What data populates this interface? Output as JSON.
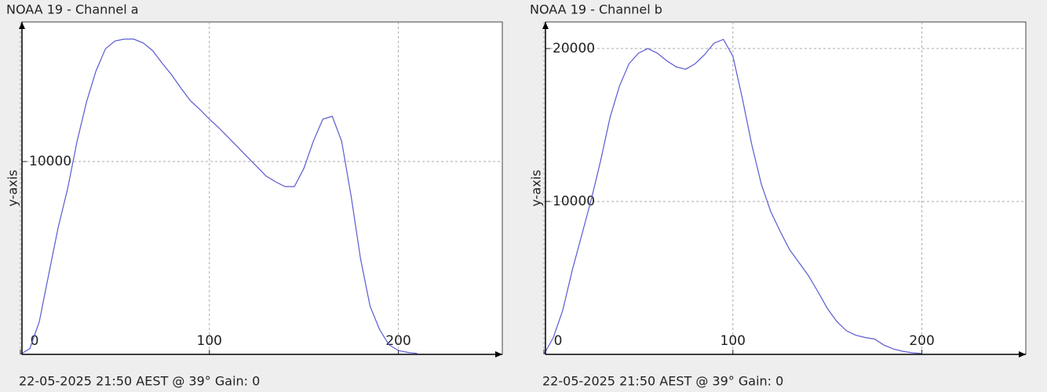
{
  "chart_data": [
    {
      "type": "line",
      "title": "NOAA 19 - Channel a",
      "y_label": "y-axis",
      "caption": "22-05-2025 21:50 AEST @ 39° Gain: 0",
      "x": [
        0,
        5,
        10,
        15,
        20,
        25,
        30,
        35,
        40,
        45,
        50,
        55,
        60,
        65,
        70,
        75,
        80,
        85,
        90,
        95,
        100,
        105,
        110,
        115,
        120,
        125,
        130,
        135,
        140,
        145,
        150,
        155,
        160,
        165,
        170,
        175,
        180,
        185,
        190,
        195,
        200,
        205,
        210
      ],
      "series": [
        {
          "color": "#5a5ad2",
          "values": [
            0,
            300,
            1700,
            4150,
            6600,
            8600,
            11050,
            13100,
            14700,
            15850,
            16250,
            16350,
            16350,
            16150,
            15750,
            15100,
            14500,
            13800,
            13150,
            12700,
            12200,
            11750,
            11250,
            10750,
            10250,
            9750,
            9250,
            8950,
            8700,
            8700,
            9650,
            11050,
            12200,
            12350,
            11050,
            8200,
            4950,
            2500,
            1300,
            500,
            200,
            100,
            50
          ]
        }
      ],
      "xlim": [
        0,
        255
      ],
      "xticks": [
        0,
        100,
        200
      ],
      "ylim": [
        0,
        17240
      ],
      "yticks": [
        10000
      ],
      "grid": true
    },
    {
      "type": "line",
      "title": "NOAA 19 - Channel b",
      "y_label": "y-axis",
      "caption": "22-05-2025 21:50 AEST @ 39° Gain: 0",
      "x": [
        0,
        5,
        10,
        15,
        20,
        25,
        30,
        35,
        40,
        45,
        50,
        55,
        60,
        65,
        70,
        75,
        80,
        85,
        90,
        95,
        100,
        105,
        110,
        115,
        120,
        125,
        130,
        135,
        140,
        145,
        150,
        155,
        160,
        165,
        170,
        175,
        180,
        185,
        190,
        195,
        200
      ],
      "series": [
        {
          "color": "#5a5ad2",
          "values": [
            0,
            1100,
            2900,
            5500,
            7800,
            10100,
            12650,
            15500,
            17550,
            19000,
            19700,
            20000,
            19700,
            19200,
            18800,
            18650,
            19000,
            19600,
            20350,
            20600,
            19500,
            16750,
            13700,
            11150,
            9350,
            8050,
            6850,
            6000,
            5150,
            4100,
            3000,
            2150,
            1550,
            1250,
            1100,
            1000,
            600,
            350,
            200,
            100,
            50
          ]
        }
      ],
      "xlim": [
        0,
        255
      ],
      "xticks": [
        0,
        100,
        200
      ],
      "ylim": [
        0,
        21740
      ],
      "yticks": [
        10000,
        20000
      ],
      "grid": true
    }
  ]
}
